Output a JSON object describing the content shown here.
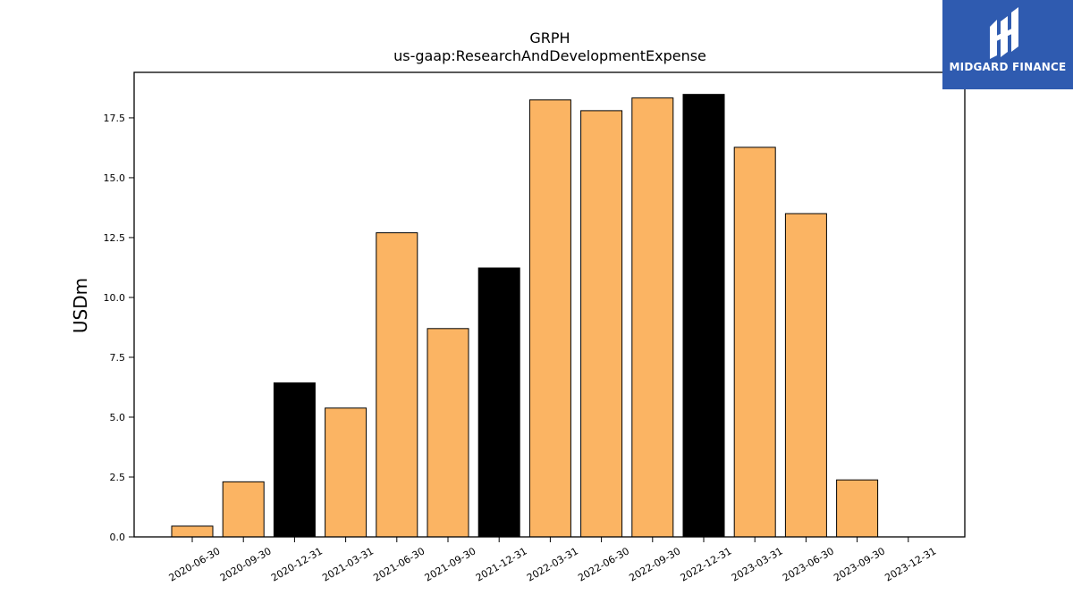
{
  "chart_data": {
    "type": "bar",
    "title": "GRPH",
    "subtitle": "us-gaap:ResearchAndDevelopmentExpense",
    "xlabel": "",
    "ylabel": "USDm",
    "categories": [
      "2020-06-30",
      "2020-09-30",
      "2020-12-31",
      "2021-03-31",
      "2021-06-30",
      "2021-09-30",
      "2021-12-31",
      "2022-03-31",
      "2022-06-30",
      "2022-09-30",
      "2022-12-31",
      "2023-03-31",
      "2023-06-30",
      "2023-09-30",
      "2023-12-31"
    ],
    "values": [
      0.45,
      2.3,
      6.43,
      5.38,
      12.7,
      8.7,
      11.23,
      18.25,
      17.8,
      18.33,
      18.48,
      16.27,
      13.5,
      2.38,
      0
    ],
    "highlight": [
      false,
      false,
      true,
      false,
      false,
      false,
      true,
      false,
      false,
      false,
      true,
      false,
      false,
      false,
      false
    ],
    "ylim": [
      0,
      19.4
    ],
    "yticks": [
      "0.0",
      "2.5",
      "5.0",
      "7.5",
      "10.0",
      "12.5",
      "15.0",
      "17.5"
    ],
    "colors": {
      "bar": "#fbb463",
      "highlight": "#000000",
      "edge": "#000000"
    },
    "grid": false,
    "legend": "none"
  },
  "logo": {
    "text": "MIDGARD FINANCE",
    "icon": "midgard-logo-icon",
    "background": "#2f5bb0"
  }
}
